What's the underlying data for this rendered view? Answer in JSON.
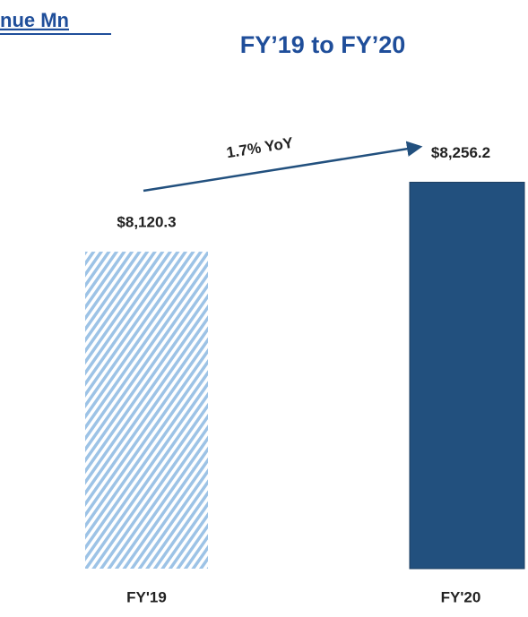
{
  "chart_data": {
    "type": "bar",
    "title": "nue Mn",
    "subtitle": "FY’19 to FY’20",
    "annotation": "1.7% YoY",
    "categories": [
      "FY'19",
      "FY'20"
    ],
    "values": [
      8120.3,
      8256.2
    ],
    "value_labels": [
      "$8,120.3",
      "$8,256.2"
    ],
    "colors": [
      "#9dc3e6",
      "#22507e"
    ],
    "hatched": [
      true,
      false
    ],
    "ylim": [
      7500,
      8350
    ]
  }
}
